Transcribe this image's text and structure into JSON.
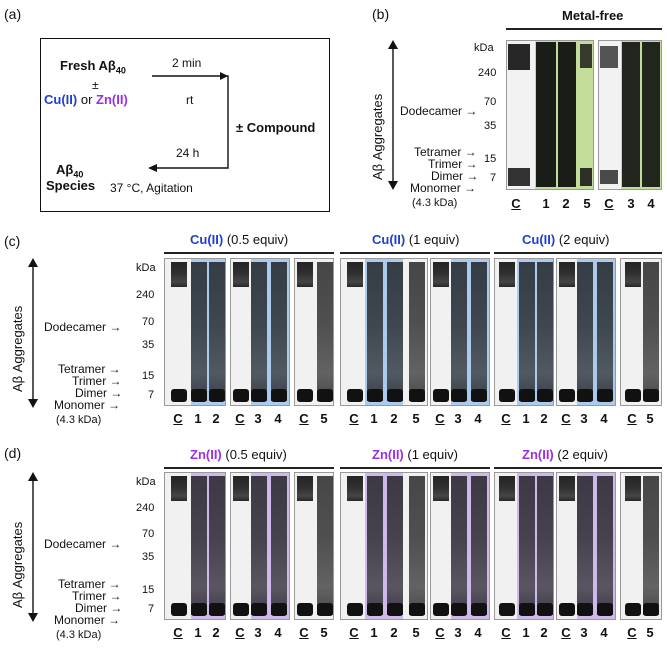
{
  "panels": {
    "a": "(a)",
    "b": "(b)",
    "c": "(c)",
    "d": "(d)"
  },
  "scheme": {
    "fresh": "Fresh Aβ",
    "fresh_sub": "40",
    "pm": "±",
    "cu": "Cu(II)",
    "or": "or",
    "zn": "Zn(II)",
    "time1": "2 min",
    "cond1": "rt",
    "compound": "± Compound",
    "time2": "24 h",
    "species": "Aβ",
    "species_sub": "40",
    "species2": "Species",
    "cond2": "37 °C, Agitation"
  },
  "axis": {
    "kda": "kDa",
    "ticks": [
      "240",
      "70",
      "35",
      "15",
      "7"
    ],
    "aggregates": "Aβ Aggregates",
    "species": [
      "Dodecamer",
      "Tetramer",
      "Trimer",
      "Dimer",
      "Monomer"
    ],
    "monomer_mass": "(4.3 kDa)"
  },
  "panel_b": {
    "title": "Metal-free",
    "lanes": [
      "C",
      "1",
      "2",
      "5",
      "C",
      "3",
      "4"
    ]
  },
  "panel_c": {
    "headers": [
      {
        "metal": "Cu(II)",
        "equiv": "(0.5 equiv)"
      },
      {
        "metal": "Cu(II)",
        "equiv": "(1 equiv)"
      },
      {
        "metal": "Cu(II)",
        "equiv": "(2 equiv)"
      }
    ],
    "lanes": [
      "C",
      "1",
      "2",
      "C",
      "3",
      "4",
      "C",
      "5",
      "C",
      "1",
      "2",
      "5",
      "C",
      "3",
      "4",
      "C",
      "1",
      "2",
      "C",
      "3",
      "4",
      "C",
      "5"
    ]
  },
  "panel_d": {
    "headers": [
      {
        "metal": "Zn(II)",
        "equiv": "(0.5 equiv)"
      },
      {
        "metal": "Zn(II)",
        "equiv": "(1 equiv)"
      },
      {
        "metal": "Zn(II)",
        "equiv": "(2 equiv)"
      }
    ],
    "lanes": [
      "C",
      "1",
      "2",
      "C",
      "3",
      "4",
      "C",
      "5",
      "C",
      "1",
      "2",
      "5",
      "C",
      "3",
      "4",
      "C",
      "1",
      "2",
      "C",
      "3",
      "4",
      "C",
      "5"
    ]
  },
  "colors": {
    "cu": "#1f3fd6",
    "zn": "#9b30e0",
    "green_tint": "#b9d98a",
    "blue_tint": "#9fc3ec",
    "purple_tint": "#c7b0ea"
  }
}
